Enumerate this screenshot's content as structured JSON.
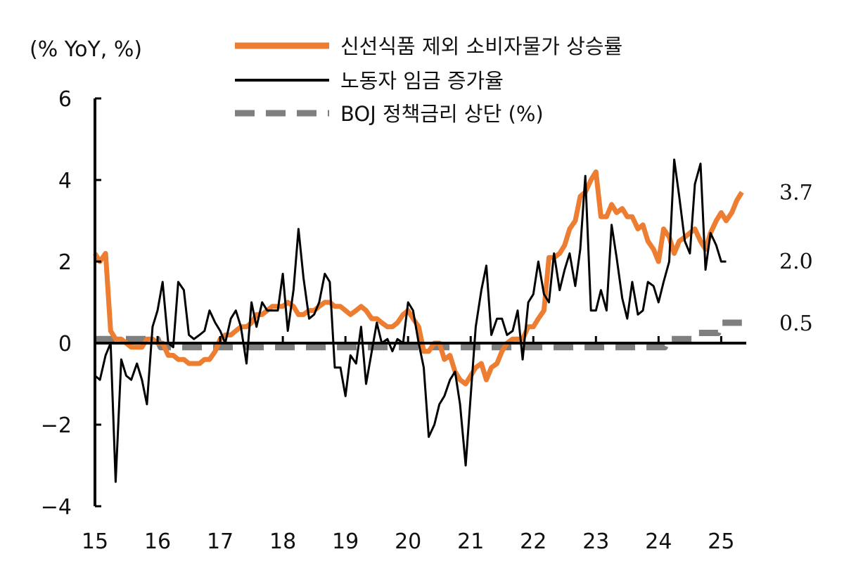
{
  "chart_data": {
    "type": "line",
    "unit_label": "(% YoY, %)",
    "x_tick_labels": [
      "15",
      "16",
      "17",
      "18",
      "19",
      "20",
      "21",
      "22",
      "23",
      "24",
      "25"
    ],
    "y_tick_labels": [
      "6",
      "4",
      "2",
      "0",
      "−2",
      "−4"
    ],
    "ylim": [
      -4,
      6
    ],
    "xlim": [
      2015.0,
      2025.4
    ],
    "grid": false,
    "legend_position": "top",
    "end_labels": [
      "3.7",
      "2.0",
      "0.5"
    ],
    "series": [
      {
        "name": "신선식품 제외 소비자물가 상승률",
        "color": "#ED7D31",
        "style": "solid-thick",
        "points": [
          [
            2015.0,
            2.2
          ],
          [
            2015.08,
            2.0
          ],
          [
            2015.17,
            2.2
          ],
          [
            2015.25,
            0.3
          ],
          [
            2015.33,
            0.1
          ],
          [
            2015.42,
            0.1
          ],
          [
            2015.5,
            0.0
          ],
          [
            2015.58,
            -0.1
          ],
          [
            2015.67,
            -0.1
          ],
          [
            2015.75,
            -0.1
          ],
          [
            2015.83,
            0.1
          ],
          [
            2015.92,
            0.1
          ],
          [
            2016.0,
            0.0
          ],
          [
            2016.08,
            0.0
          ],
          [
            2016.17,
            -0.3
          ],
          [
            2016.25,
            -0.3
          ],
          [
            2016.33,
            -0.4
          ],
          [
            2016.42,
            -0.4
          ],
          [
            2016.5,
            -0.5
          ],
          [
            2016.58,
            -0.5
          ],
          [
            2016.67,
            -0.5
          ],
          [
            2016.75,
            -0.4
          ],
          [
            2016.83,
            -0.4
          ],
          [
            2016.92,
            -0.2
          ],
          [
            2017.0,
            0.1
          ],
          [
            2017.08,
            0.2
          ],
          [
            2017.17,
            0.2
          ],
          [
            2017.25,
            0.3
          ],
          [
            2017.33,
            0.4
          ],
          [
            2017.42,
            0.4
          ],
          [
            2017.5,
            0.5
          ],
          [
            2017.58,
            0.7
          ],
          [
            2017.67,
            0.7
          ],
          [
            2017.75,
            0.8
          ],
          [
            2017.83,
            0.9
          ],
          [
            2017.92,
            0.9
          ],
          [
            2018.0,
            0.9
          ],
          [
            2018.08,
            1.0
          ],
          [
            2018.17,
            0.9
          ],
          [
            2018.25,
            0.7
          ],
          [
            2018.33,
            0.7
          ],
          [
            2018.42,
            0.8
          ],
          [
            2018.5,
            0.8
          ],
          [
            2018.58,
            0.9
          ],
          [
            2018.67,
            1.0
          ],
          [
            2018.75,
            1.0
          ],
          [
            2018.83,
            0.9
          ],
          [
            2018.92,
            0.9
          ],
          [
            2019.0,
            0.8
          ],
          [
            2019.08,
            0.7
          ],
          [
            2019.17,
            0.8
          ],
          [
            2019.25,
            0.9
          ],
          [
            2019.33,
            0.8
          ],
          [
            2019.42,
            0.6
          ],
          [
            2019.5,
            0.6
          ],
          [
            2019.58,
            0.5
          ],
          [
            2019.67,
            0.4
          ],
          [
            2019.75,
            0.4
          ],
          [
            2019.83,
            0.5
          ],
          [
            2019.92,
            0.7
          ],
          [
            2020.0,
            0.8
          ],
          [
            2020.08,
            0.6
          ],
          [
            2020.17,
            0.4
          ],
          [
            2020.25,
            -0.2
          ],
          [
            2020.33,
            -0.2
          ],
          [
            2020.42,
            0.0
          ],
          [
            2020.5,
            0.0
          ],
          [
            2020.58,
            -0.4
          ],
          [
            2020.67,
            -0.3
          ],
          [
            2020.75,
            -0.7
          ],
          [
            2020.83,
            -0.9
          ],
          [
            2020.92,
            -1.0
          ],
          [
            2021.0,
            -0.8
          ],
          [
            2021.08,
            -0.6
          ],
          [
            2021.17,
            -0.5
          ],
          [
            2021.25,
            -0.9
          ],
          [
            2021.33,
            -0.6
          ],
          [
            2021.42,
            -0.5
          ],
          [
            2021.5,
            -0.2
          ],
          [
            2021.58,
            0.0
          ],
          [
            2021.67,
            0.1
          ],
          [
            2021.75,
            0.1
          ],
          [
            2021.83,
            0.1
          ],
          [
            2021.92,
            0.4
          ],
          [
            2022.0,
            0.4
          ],
          [
            2022.08,
            0.6
          ],
          [
            2022.17,
            0.8
          ],
          [
            2022.25,
            2.1
          ],
          [
            2022.33,
            2.1
          ],
          [
            2022.42,
            2.2
          ],
          [
            2022.5,
            2.4
          ],
          [
            2022.58,
            2.8
          ],
          [
            2022.67,
            3.0
          ],
          [
            2022.75,
            3.6
          ],
          [
            2022.83,
            3.7
          ],
          [
            2022.92,
            4.0
          ],
          [
            2023.0,
            4.2
          ],
          [
            2023.08,
            3.1
          ],
          [
            2023.17,
            3.1
          ],
          [
            2023.25,
            3.4
          ],
          [
            2023.33,
            3.2
          ],
          [
            2023.42,
            3.3
          ],
          [
            2023.5,
            3.1
          ],
          [
            2023.58,
            3.1
          ],
          [
            2023.67,
            2.8
          ],
          [
            2023.75,
            2.9
          ],
          [
            2023.83,
            2.5
          ],
          [
            2023.92,
            2.3
          ],
          [
            2024.0,
            2.0
          ],
          [
            2024.08,
            2.8
          ],
          [
            2024.17,
            2.6
          ],
          [
            2024.25,
            2.2
          ],
          [
            2024.33,
            2.5
          ],
          [
            2024.42,
            2.6
          ],
          [
            2024.5,
            2.7
          ],
          [
            2024.58,
            2.8
          ],
          [
            2024.67,
            2.5
          ],
          [
            2024.75,
            2.3
          ],
          [
            2024.83,
            2.7
          ],
          [
            2024.92,
            3.0
          ],
          [
            2025.0,
            3.2
          ],
          [
            2025.08,
            3.0
          ],
          [
            2025.17,
            3.2
          ],
          [
            2025.25,
            3.5
          ],
          [
            2025.33,
            3.7
          ]
        ]
      },
      {
        "name": "노동자 임금 증가율",
        "color": "#000000",
        "style": "solid-thin",
        "points": [
          [
            2015.0,
            -0.8
          ],
          [
            2015.08,
            -0.9
          ],
          [
            2015.17,
            -0.3
          ],
          [
            2015.25,
            0.0
          ],
          [
            2015.33,
            -3.4
          ],
          [
            2015.42,
            -0.4
          ],
          [
            2015.5,
            -0.8
          ],
          [
            2015.58,
            -0.9
          ],
          [
            2015.67,
            -0.5
          ],
          [
            2015.75,
            -0.9
          ],
          [
            2015.83,
            -1.5
          ],
          [
            2015.92,
            0.4
          ],
          [
            2016.0,
            0.8
          ],
          [
            2016.08,
            1.5
          ],
          [
            2016.17,
            0.0
          ],
          [
            2016.25,
            -0.1
          ],
          [
            2016.33,
            1.5
          ],
          [
            2016.42,
            1.3
          ],
          [
            2016.5,
            0.2
          ],
          [
            2016.58,
            0.1
          ],
          [
            2016.67,
            0.2
          ],
          [
            2016.75,
            0.3
          ],
          [
            2016.83,
            0.8
          ],
          [
            2016.92,
            0.5
          ],
          [
            2017.0,
            0.3
          ],
          [
            2017.08,
            0.0
          ],
          [
            2017.17,
            0.6
          ],
          [
            2017.25,
            0.8
          ],
          [
            2017.33,
            0.4
          ],
          [
            2017.42,
            -0.5
          ],
          [
            2017.5,
            1.0
          ],
          [
            2017.58,
            0.4
          ],
          [
            2017.67,
            1.0
          ],
          [
            2017.75,
            0.8
          ],
          [
            2017.83,
            0.8
          ],
          [
            2017.92,
            0.8
          ],
          [
            2018.0,
            1.7
          ],
          [
            2018.08,
            0.3
          ],
          [
            2018.17,
            1.3
          ],
          [
            2018.25,
            2.8
          ],
          [
            2018.33,
            1.6
          ],
          [
            2018.42,
            0.6
          ],
          [
            2018.5,
            0.7
          ],
          [
            2018.58,
            1.0
          ],
          [
            2018.67,
            1.7
          ],
          [
            2018.75,
            1.5
          ],
          [
            2018.83,
            -0.6
          ],
          [
            2018.92,
            -0.6
          ],
          [
            2019.0,
            -1.3
          ],
          [
            2019.08,
            -0.3
          ],
          [
            2019.17,
            -0.5
          ],
          [
            2019.25,
            0.4
          ],
          [
            2019.33,
            -1.0
          ],
          [
            2019.42,
            -0.2
          ],
          [
            2019.5,
            0.5
          ],
          [
            2019.58,
            0.0
          ],
          [
            2019.67,
            0.1
          ],
          [
            2019.75,
            -0.2
          ],
          [
            2019.83,
            0.1
          ],
          [
            2019.92,
            0.0
          ],
          [
            2020.0,
            1.0
          ],
          [
            2020.08,
            0.8
          ],
          [
            2020.17,
            0.0
          ],
          [
            2020.25,
            -0.6
          ],
          [
            2020.33,
            -2.3
          ],
          [
            2020.42,
            -2.0
          ],
          [
            2020.5,
            -1.5
          ],
          [
            2020.58,
            -1.3
          ],
          [
            2020.67,
            -0.9
          ],
          [
            2020.75,
            -0.7
          ],
          [
            2020.83,
            -1.5
          ],
          [
            2020.92,
            -3.0
          ],
          [
            2021.0,
            -1.3
          ],
          [
            2021.08,
            0.4
          ],
          [
            2021.17,
            1.3
          ],
          [
            2021.25,
            1.9
          ],
          [
            2021.33,
            0.2
          ],
          [
            2021.42,
            0.6
          ],
          [
            2021.5,
            0.6
          ],
          [
            2021.58,
            0.2
          ],
          [
            2021.67,
            0.3
          ],
          [
            2021.75,
            0.8
          ],
          [
            2021.83,
            -0.4
          ],
          [
            2021.92,
            1.0
          ],
          [
            2022.0,
            1.2
          ],
          [
            2022.08,
            2.0
          ],
          [
            2022.17,
            1.2
          ],
          [
            2022.25,
            1.0
          ],
          [
            2022.33,
            2.2
          ],
          [
            2022.42,
            1.3
          ],
          [
            2022.5,
            1.8
          ],
          [
            2022.58,
            2.2
          ],
          [
            2022.67,
            1.4
          ],
          [
            2022.75,
            2.3
          ],
          [
            2022.83,
            4.1
          ],
          [
            2022.92,
            0.8
          ],
          [
            2023.0,
            0.8
          ],
          [
            2023.08,
            1.3
          ],
          [
            2023.17,
            0.8
          ],
          [
            2023.25,
            2.9
          ],
          [
            2023.33,
            2.1
          ],
          [
            2023.42,
            1.1
          ],
          [
            2023.5,
            0.6
          ],
          [
            2023.58,
            1.5
          ],
          [
            2023.67,
            0.7
          ],
          [
            2023.75,
            0.8
          ],
          [
            2023.83,
            1.5
          ],
          [
            2023.92,
            1.4
          ],
          [
            2024.0,
            1.0
          ],
          [
            2024.08,
            1.5
          ],
          [
            2024.17,
            2.0
          ],
          [
            2024.25,
            4.5
          ],
          [
            2024.33,
            3.6
          ],
          [
            2024.42,
            2.5
          ],
          [
            2024.5,
            2.2
          ],
          [
            2024.58,
            3.9
          ],
          [
            2024.67,
            4.4
          ],
          [
            2024.75,
            1.8
          ],
          [
            2024.83,
            2.7
          ],
          [
            2024.92,
            2.4
          ],
          [
            2025.0,
            2.0
          ],
          [
            2025.08,
            2.0
          ]
        ]
      },
      {
        "name": "BOJ 정책금리 상단 (%)",
        "color": "#7F7F7F",
        "style": "dashed-thick",
        "points": [
          [
            2015.0,
            0.1
          ],
          [
            2016.0,
            0.1
          ],
          [
            2016.05,
            -0.1
          ],
          [
            2024.1,
            -0.1
          ],
          [
            2024.15,
            0.1
          ],
          [
            2024.55,
            0.1
          ],
          [
            2024.6,
            0.25
          ],
          [
            2024.95,
            0.25
          ],
          [
            2025.0,
            0.5
          ],
          [
            2025.33,
            0.5
          ]
        ]
      }
    ]
  }
}
